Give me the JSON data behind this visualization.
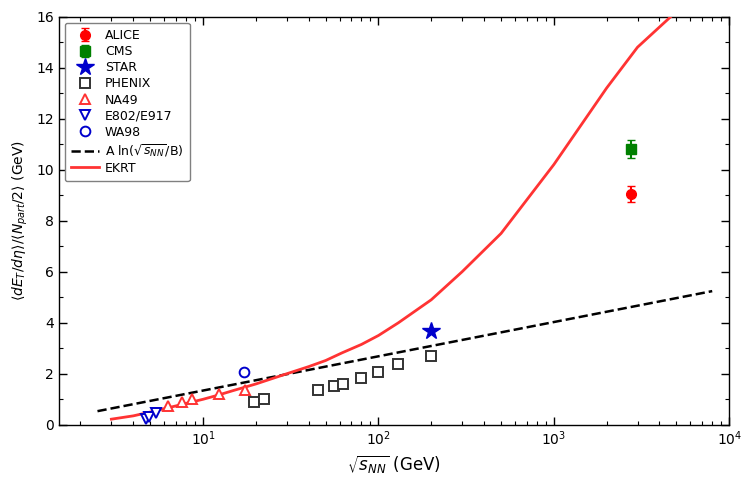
{
  "title": "",
  "xlabel": "$\\sqrt{s_{NN}}$ (GeV)",
  "ylabel": "$\\langle dE_T/d\\eta \\rangle / \\langle N_{part}/2 \\rangle$ (GeV)",
  "xlim": [
    1.5,
    10000
  ],
  "ylim": [
    0,
    16
  ],
  "ALICE": {
    "x": [
      2760
    ],
    "y": [
      9.05
    ],
    "yerr": [
      0.3
    ],
    "color": "#ff0000",
    "marker": "o",
    "markersize": 7,
    "filled": true
  },
  "CMS": {
    "x": [
      2760
    ],
    "y": [
      10.8
    ],
    "yerr": [
      0.35
    ],
    "color": "#008000",
    "marker": "s",
    "markersize": 7,
    "filled": true
  },
  "STAR": {
    "x": [
      200
    ],
    "y": [
      3.68
    ],
    "color": "#0000cc",
    "marker": "*",
    "markersize": 13,
    "filled": true
  },
  "PHENIX": {
    "x": [
      19.6,
      22.4,
      45,
      56,
      62.4,
      80,
      100,
      130,
      200
    ],
    "y": [
      0.88,
      1.0,
      1.38,
      1.52,
      1.6,
      1.82,
      2.05,
      2.4,
      2.7
    ],
    "color": "#333333",
    "marker": "s",
    "markersize": 7,
    "filled": false
  },
  "NA49": {
    "x": [
      6.3,
      7.6,
      8.7,
      12.3,
      17.3
    ],
    "y": [
      0.75,
      0.88,
      1.02,
      1.22,
      1.38
    ],
    "color": "#ff3333",
    "marker": "^",
    "markersize": 7,
    "filled": false
  },
  "E802E917": {
    "x": [
      4.7,
      4.9,
      5.4
    ],
    "y": [
      0.22,
      0.32,
      0.48
    ],
    "color": "#0000cc",
    "marker": "v",
    "markersize": 7,
    "filled": false
  },
  "WA98": {
    "x": [
      17.2
    ],
    "y": [
      2.05
    ],
    "color": "#0000cc",
    "marker": "o",
    "markersize": 7,
    "filled": false
  },
  "log_fit": {
    "A": 0.583,
    "B": 1.0,
    "x_start": 2.5,
    "x_end": 8000,
    "color": "#000000",
    "linestyle": "--",
    "linewidth": 1.8
  },
  "EKRT": {
    "color": "#ff3333",
    "linestyle": "-",
    "linewidth": 2.0,
    "x": [
      3,
      4,
      5,
      6,
      7,
      8,
      10,
      12,
      15,
      20,
      25,
      30,
      40,
      50,
      62,
      80,
      100,
      130,
      200,
      300,
      500,
      1000,
      2000,
      3000,
      5000
    ],
    "y": [
      0.22,
      0.35,
      0.5,
      0.63,
      0.74,
      0.84,
      1.0,
      1.15,
      1.35,
      1.6,
      1.82,
      2.0,
      2.28,
      2.52,
      2.82,
      3.15,
      3.5,
      4.0,
      4.9,
      6.0,
      7.5,
      10.2,
      13.2,
      14.8,
      16.2
    ]
  },
  "figsize": [
    7.53,
    4.87
  ],
  "dpi": 100
}
